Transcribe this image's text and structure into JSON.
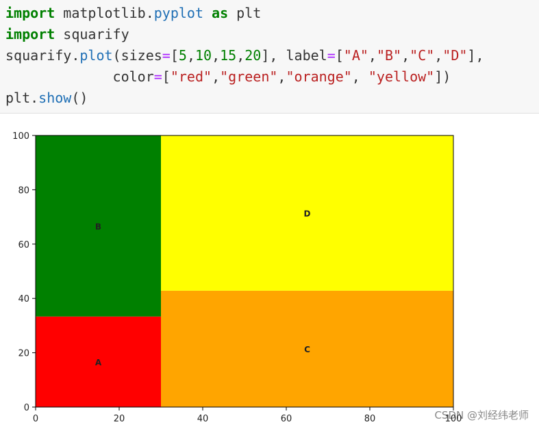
{
  "code": {
    "lines": [
      [
        {
          "text": "import",
          "color": "#008000"
        },
        {
          "text": " matplotlib.",
          "color": "#333333"
        },
        {
          "text": "pyplot",
          "color": "#1f6fb5"
        },
        {
          "text": " as",
          "color": "#008000"
        },
        {
          "text": " plt",
          "color": "#333333"
        }
      ],
      [
        {
          "text": "import",
          "color": "#008000"
        },
        {
          "text": " squarify",
          "color": "#333333"
        }
      ],
      [
        {
          "text": "squarify.",
          "color": "#333333"
        },
        {
          "text": "plot",
          "color": "#1f6fb5"
        },
        {
          "text": "(sizes",
          "color": "#333333"
        },
        {
          "text": "=",
          "color": "#aa22ff"
        },
        {
          "text": "[",
          "color": "#333333"
        },
        {
          "text": "5",
          "color": "#008000"
        },
        {
          "text": ",",
          "color": "#333333"
        },
        {
          "text": "10",
          "color": "#008000"
        },
        {
          "text": ",",
          "color": "#333333"
        },
        {
          "text": "15",
          "color": "#008000"
        },
        {
          "text": ",",
          "color": "#333333"
        },
        {
          "text": "20",
          "color": "#008000"
        },
        {
          "text": "], label",
          "color": "#333333"
        },
        {
          "text": "=",
          "color": "#aa22ff"
        },
        {
          "text": "[",
          "color": "#333333"
        },
        {
          "text": "\"A\"",
          "color": "#ba2121"
        },
        {
          "text": ",",
          "color": "#333333"
        },
        {
          "text": "\"B\"",
          "color": "#ba2121"
        },
        {
          "text": ",",
          "color": "#333333"
        },
        {
          "text": "\"C\"",
          "color": "#ba2121"
        },
        {
          "text": ",",
          "color": "#333333"
        },
        {
          "text": "\"D\"",
          "color": "#ba2121"
        },
        {
          "text": "],",
          "color": "#333333"
        }
      ],
      [
        {
          "text": "             color",
          "color": "#333333"
        },
        {
          "text": "=",
          "color": "#aa22ff"
        },
        {
          "text": "[",
          "color": "#333333"
        },
        {
          "text": "\"red\"",
          "color": "#ba2121"
        },
        {
          "text": ",",
          "color": "#333333"
        },
        {
          "text": "\"green\"",
          "color": "#ba2121"
        },
        {
          "text": ",",
          "color": "#333333"
        },
        {
          "text": "\"orange\"",
          "color": "#ba2121"
        },
        {
          "text": ", ",
          "color": "#333333"
        },
        {
          "text": "\"yellow\"",
          "color": "#ba2121"
        },
        {
          "text": "])",
          "color": "#333333"
        }
      ],
      [
        {
          "text": "plt.",
          "color": "#333333"
        },
        {
          "text": "show",
          "color": "#1f6fb5"
        },
        {
          "text": "()",
          "color": "#333333"
        }
      ]
    ]
  },
  "chart_data": {
    "type": "treemap",
    "categories": [
      "A",
      "B",
      "C",
      "D"
    ],
    "values": [
      5,
      10,
      15,
      20
    ],
    "colors": [
      "red",
      "green",
      "orange",
      "yellow"
    ],
    "xlim": [
      0,
      100
    ],
    "ylim": [
      0,
      100
    ],
    "xticks": [
      0,
      20,
      40,
      60,
      80,
      100
    ],
    "yticks": [
      0,
      20,
      40,
      60,
      80,
      100
    ]
  },
  "watermark": "CSDN @刘经纬老师"
}
